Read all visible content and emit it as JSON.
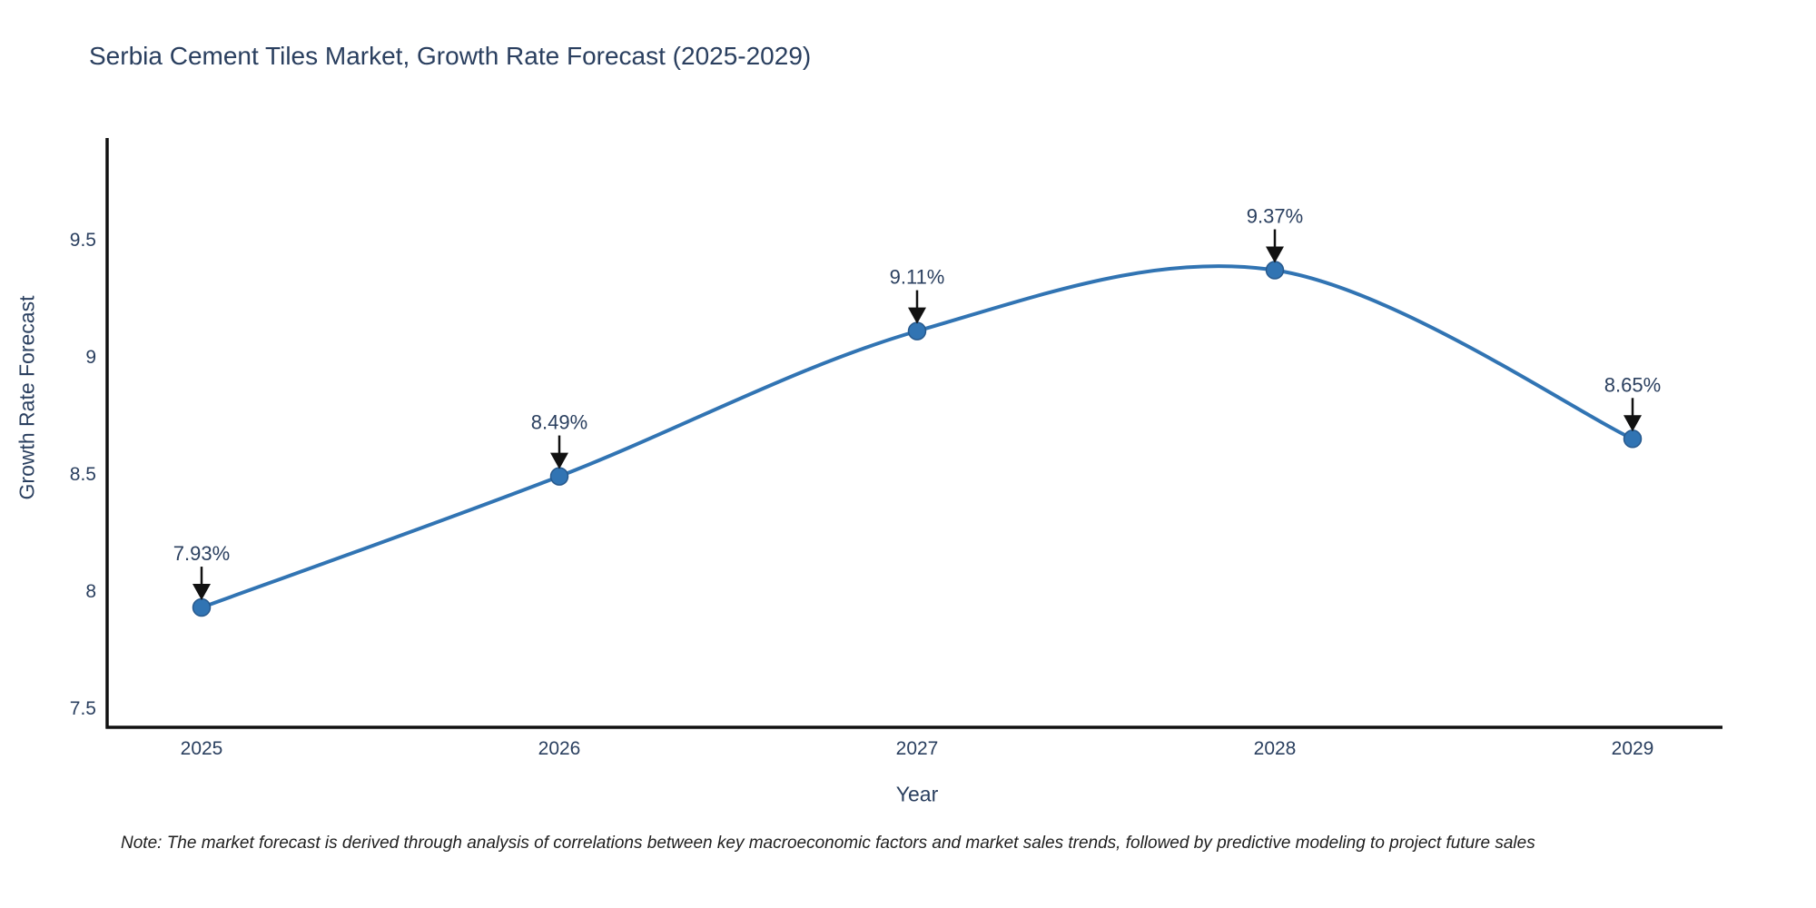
{
  "title": "Serbia Cement Tiles Market, Growth Rate Forecast (2025-2029)",
  "note": "Note: The market forecast is derived through analysis of correlations between key macroeconomic factors and market sales trends, followed by predictive modeling to project future sales",
  "chart_data": {
    "type": "line",
    "x": [
      "2025",
      "2026",
      "2027",
      "2028",
      "2029"
    ],
    "values": [
      7.93,
      8.49,
      9.11,
      9.37,
      8.65
    ],
    "point_labels": [
      "7.93%",
      "8.49%",
      "9.11%",
      "9.37%",
      "8.65%"
    ],
    "title": "Serbia Cement Tiles Market, Growth Rate Forecast (2025-2029)",
    "xlabel": "Year",
    "ylabel": "Growth Rate Forecast",
    "yticks": [
      7.5,
      8,
      8.5,
      9,
      9.5
    ],
    "ytick_labels": [
      "7.5",
      "8",
      "8.5",
      "9",
      "9.5"
    ],
    "ylim": [
      7.42,
      9.93
    ],
    "grid": false,
    "legend": "none",
    "line_shape": "spline",
    "marker": "circle",
    "annotations": "value labels with down arrows above each point",
    "colors": {
      "line": "#3174b3",
      "marker_fill": "#3174b3",
      "marker_stroke": "#27598d",
      "axis_line": "#111111",
      "text": "#2a3f5f",
      "arrow": "#111111",
      "note_text": "#1f1f1f",
      "background": "#ffffff"
    }
  }
}
